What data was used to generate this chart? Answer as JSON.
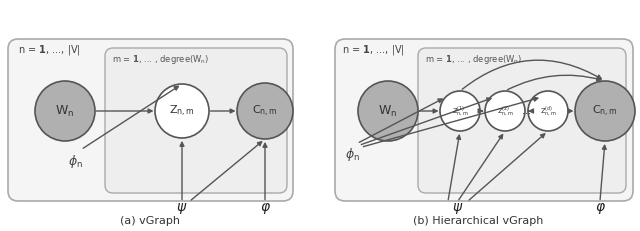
{
  "fig_width": 6.4,
  "fig_height": 2.31,
  "bg_color": "#ffffff",
  "node_gray": "#b0b0b0",
  "node_white": "#ffffff",
  "node_edge": "#555555",
  "arrow_color": "#555555",
  "box_edge": "#999999",
  "caption_a": "(a) vGraph",
  "caption_b": "(b) Hierarchical vGraph"
}
